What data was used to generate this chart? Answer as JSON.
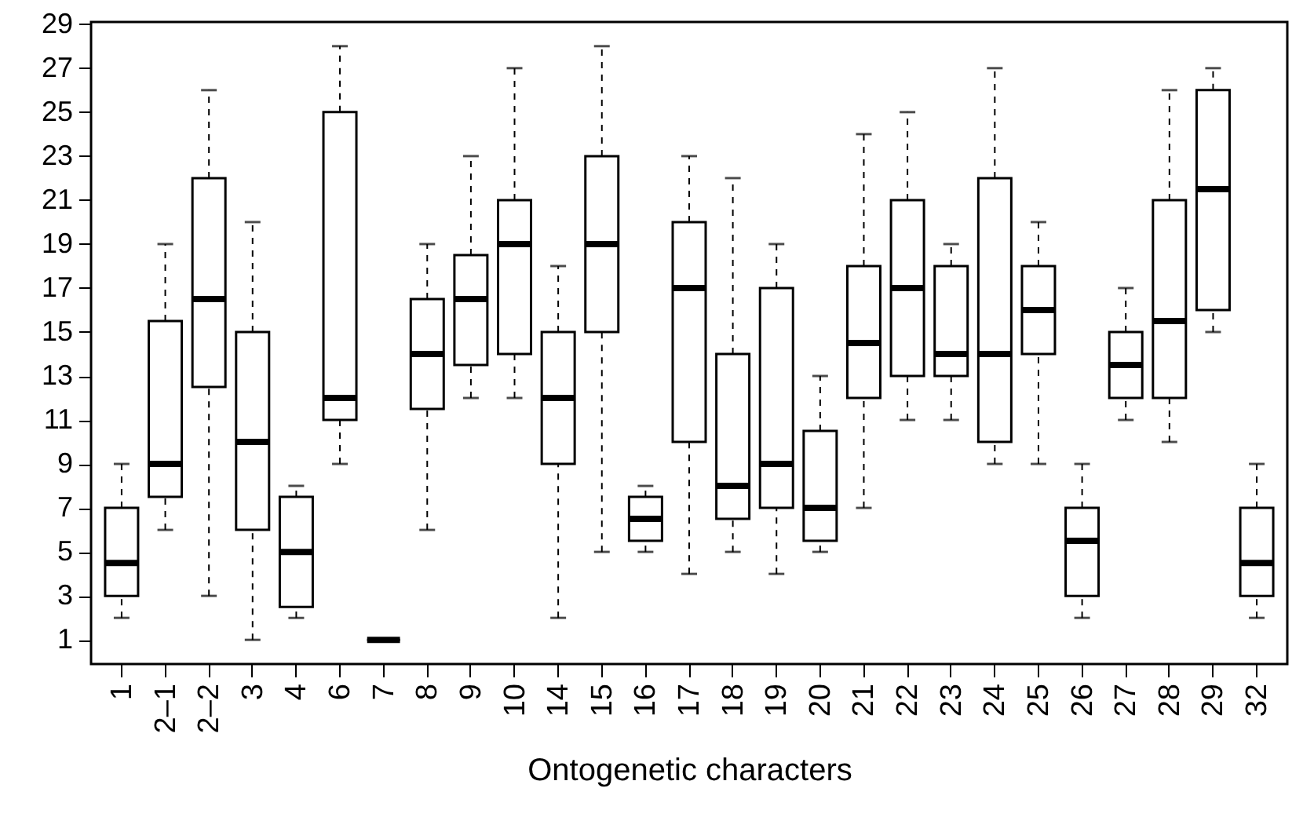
{
  "chart_data": {
    "type": "box",
    "xlabel": "Ontogenetic characters",
    "categories": [
      "1",
      "2–1",
      "2–2",
      "3",
      "4",
      "6",
      "7",
      "8",
      "9",
      "10",
      "14",
      "15",
      "16",
      "17",
      "18",
      "19",
      "20",
      "21",
      "22",
      "23",
      "24",
      "25",
      "26",
      "27",
      "28",
      "29",
      "32"
    ],
    "ylim": [
      -0.1,
      29.1
    ],
    "yticks": [
      1,
      3,
      5,
      7,
      9,
      11,
      13,
      15,
      17,
      19,
      21,
      23,
      25,
      27,
      29
    ],
    "boxes": [
      {
        "low": 2,
        "q1": 3,
        "median": 4.5,
        "q3": 7,
        "high": 9
      },
      {
        "low": 6,
        "q1": 7.5,
        "median": 9,
        "q3": 15.5,
        "high": 19
      },
      {
        "low": 3,
        "q1": 12.5,
        "median": 16.5,
        "q3": 22,
        "high": 26
      },
      {
        "low": 1,
        "q1": 6,
        "median": 10,
        "q3": 15,
        "high": 20
      },
      {
        "low": 2,
        "q1": 2.5,
        "median": 5,
        "q3": 7.5,
        "high": 8
      },
      {
        "low": 9,
        "q1": 11,
        "median": 12,
        "q3": 25,
        "high": 28
      },
      {
        "low": 1,
        "q1": 1,
        "median": 1,
        "q3": 1,
        "high": 1
      },
      {
        "low": 6,
        "q1": 11.5,
        "median": 14,
        "q3": 16.5,
        "high": 19
      },
      {
        "low": 12,
        "q1": 13.5,
        "median": 16.5,
        "q3": 18.5,
        "high": 23
      },
      {
        "low": 12,
        "q1": 14,
        "median": 19,
        "q3": 21,
        "high": 27
      },
      {
        "low": 2,
        "q1": 9,
        "median": 12,
        "q3": 15,
        "high": 18
      },
      {
        "low": 5,
        "q1": 15,
        "median": 19,
        "q3": 23,
        "high": 28
      },
      {
        "low": 5,
        "q1": 5.5,
        "median": 6.5,
        "q3": 7.5,
        "high": 8
      },
      {
        "low": 4,
        "q1": 10,
        "median": 17,
        "q3": 20,
        "high": 23
      },
      {
        "low": 5,
        "q1": 6.5,
        "median": 8,
        "q3": 14,
        "high": 22
      },
      {
        "low": 4,
        "q1": 7,
        "median": 9,
        "q3": 17,
        "high": 19
      },
      {
        "low": 5,
        "q1": 5.5,
        "median": 7,
        "q3": 10.5,
        "high": 13
      },
      {
        "low": 7,
        "q1": 12,
        "median": 14.5,
        "q3": 18,
        "high": 24
      },
      {
        "low": 11,
        "q1": 13,
        "median": 17,
        "q3": 21,
        "high": 25
      },
      {
        "low": 11,
        "q1": 13,
        "median": 14,
        "q3": 18,
        "high": 19
      },
      {
        "low": 9,
        "q1": 10,
        "median": 14,
        "q3": 22,
        "high": 27
      },
      {
        "low": 9,
        "q1": 14,
        "median": 16,
        "q3": 18,
        "high": 20
      },
      {
        "low": 2,
        "q1": 3,
        "median": 5.5,
        "q3": 7,
        "high": 9
      },
      {
        "low": 11,
        "q1": 12,
        "median": 13.5,
        "q3": 15,
        "high": 17
      },
      {
        "low": 10,
        "q1": 12,
        "median": 15.5,
        "q3": 21,
        "high": 26
      },
      {
        "low": 15,
        "q1": 16,
        "median": 21.5,
        "q3": 26,
        "high": 27
      },
      {
        "low": 2,
        "q1": 3,
        "median": 4.5,
        "q3": 7,
        "high": 9
      }
    ]
  }
}
